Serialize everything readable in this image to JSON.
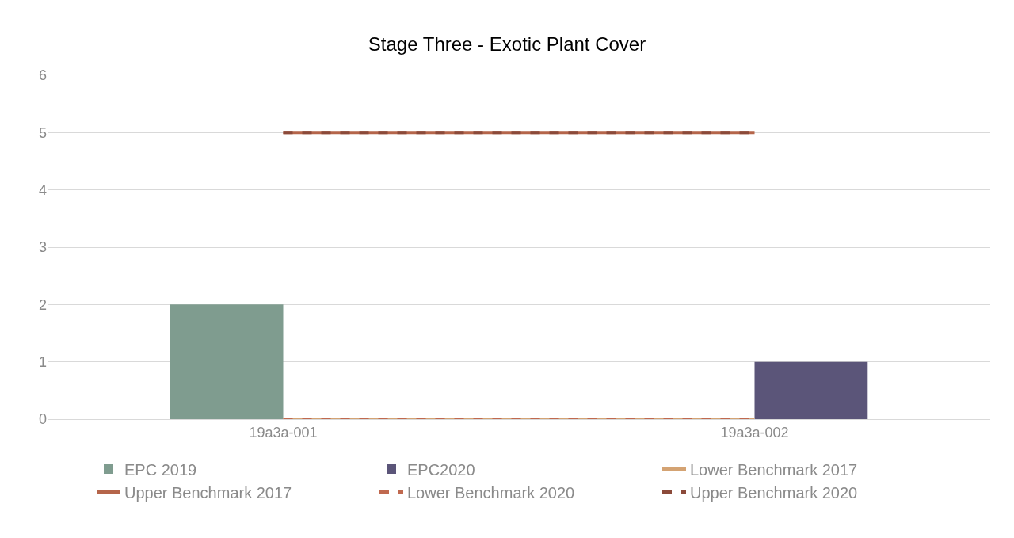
{
  "chart_data": {
    "type": "bar",
    "title": "Stage Three - Exotic Plant Cover",
    "categories": [
      "19a3a-001",
      "19a3a-002"
    ],
    "series": [
      {
        "name": "EPC 2019",
        "color": "#7f9c8f",
        "values": [
          2,
          null
        ]
      },
      {
        "name": "EPC2020",
        "color": "#5b5579",
        "values": [
          null,
          1
        ]
      },
      {
        "name": "Lower Benchmark 2017",
        "type": "line",
        "color": "#d4a373",
        "line_style": "solid",
        "values": [
          0,
          0
        ]
      },
      {
        "name": "Upper Benchmark 2017",
        "type": "line",
        "color": "#b5654a",
        "line_style": "solid",
        "values": [
          5,
          5
        ]
      },
      {
        "name": "Lower Benchmark 2020",
        "type": "line",
        "color": "#c0694f",
        "line_style": "dashed",
        "values": [
          0,
          0
        ]
      },
      {
        "name": "Upper Benchmark 2020",
        "type": "line",
        "color": "#8b4a3a",
        "line_style": "dashed",
        "values": [
          5,
          5
        ]
      }
    ],
    "ylim": [
      0,
      6
    ],
    "yticks": [
      0,
      1,
      2,
      3,
      4,
      5,
      6
    ],
    "grid": "y",
    "legend": "bottom",
    "marker": "none"
  }
}
